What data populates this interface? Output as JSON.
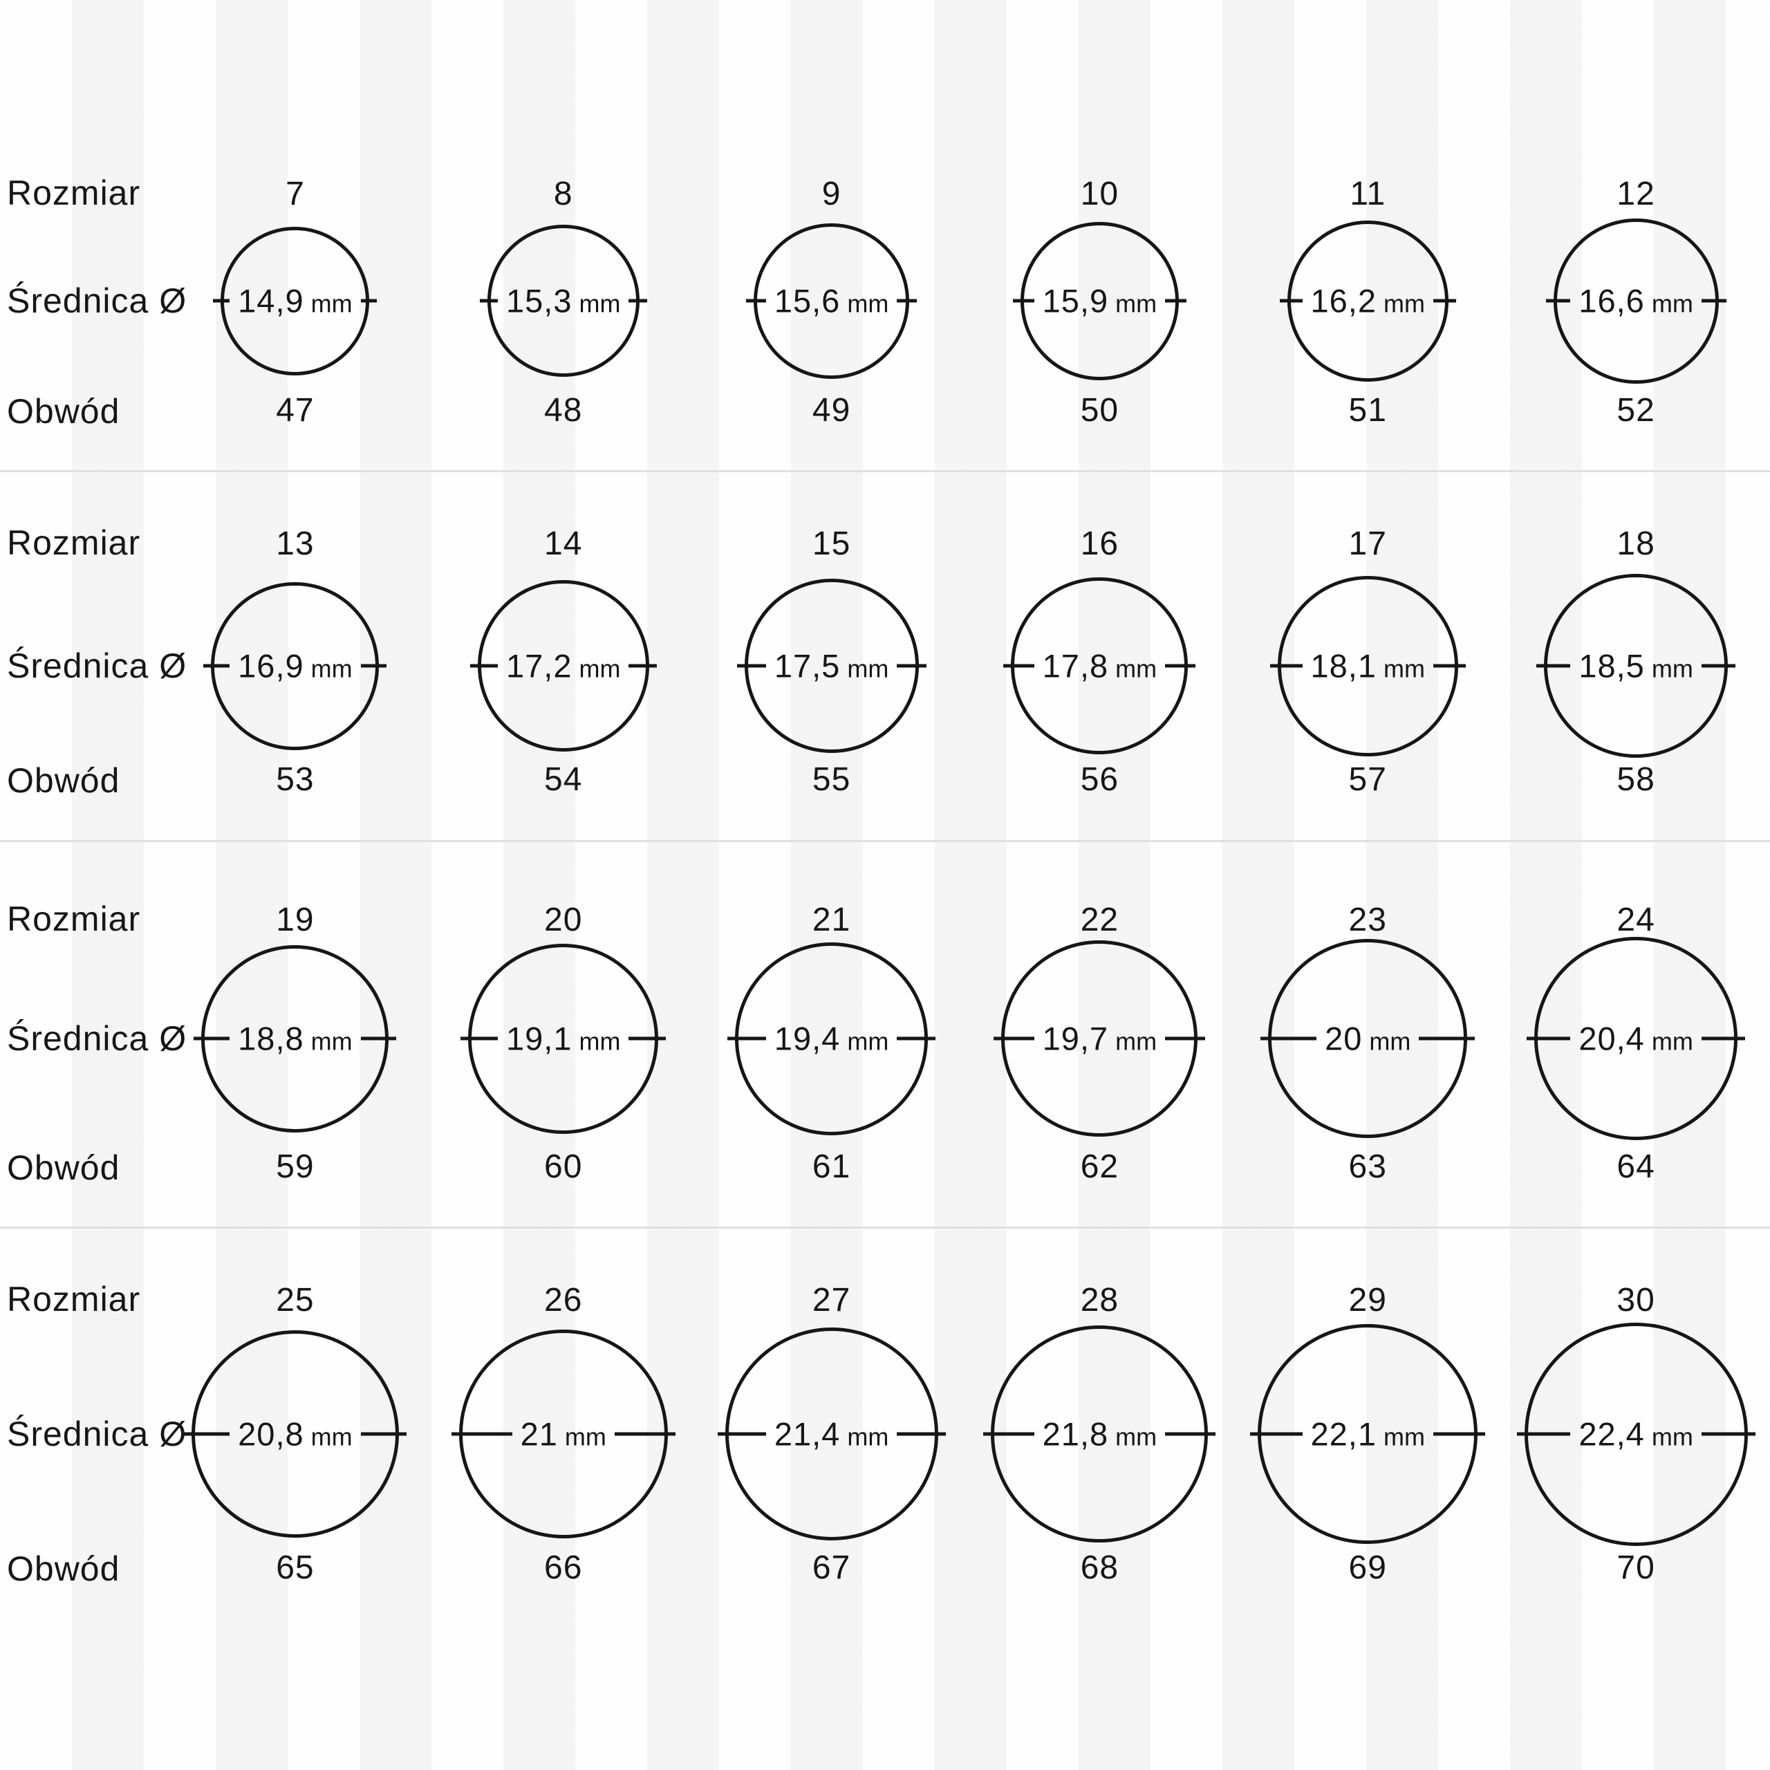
{
  "labels": {
    "size": "Rozmiar",
    "diameter": "Średnica Ø",
    "circumference": "Obwód"
  },
  "unit": "mm",
  "rows": [
    {
      "items": [
        {
          "size": "7",
          "diameter_label": "14,9",
          "diameter_mm": 14.9,
          "circumference": "47"
        },
        {
          "size": "8",
          "diameter_label": "15,3",
          "diameter_mm": 15.3,
          "circumference": "48"
        },
        {
          "size": "9",
          "diameter_label": "15,6",
          "diameter_mm": 15.6,
          "circumference": "49"
        },
        {
          "size": "10",
          "diameter_label": "15,9",
          "diameter_mm": 15.9,
          "circumference": "50"
        },
        {
          "size": "11",
          "diameter_label": "16,2",
          "diameter_mm": 16.2,
          "circumference": "51"
        },
        {
          "size": "12",
          "diameter_label": "16,6",
          "diameter_mm": 16.6,
          "circumference": "52"
        }
      ]
    },
    {
      "items": [
        {
          "size": "13",
          "diameter_label": "16,9",
          "diameter_mm": 16.9,
          "circumference": "53"
        },
        {
          "size": "14",
          "diameter_label": "17,2",
          "diameter_mm": 17.2,
          "circumference": "54"
        },
        {
          "size": "15",
          "diameter_label": "17,5",
          "diameter_mm": 17.5,
          "circumference": "55"
        },
        {
          "size": "16",
          "diameter_label": "17,8",
          "diameter_mm": 17.8,
          "circumference": "56"
        },
        {
          "size": "17",
          "diameter_label": "18,1",
          "diameter_mm": 18.1,
          "circumference": "57"
        },
        {
          "size": "18",
          "diameter_label": "18,5",
          "diameter_mm": 18.5,
          "circumference": "58"
        }
      ]
    },
    {
      "items": [
        {
          "size": "19",
          "diameter_label": "18,8",
          "diameter_mm": 18.8,
          "circumference": "59"
        },
        {
          "size": "20",
          "diameter_label": "19,1",
          "diameter_mm": 19.1,
          "circumference": "60"
        },
        {
          "size": "21",
          "diameter_label": "19,4",
          "diameter_mm": 19.4,
          "circumference": "61"
        },
        {
          "size": "22",
          "diameter_label": "19,7",
          "diameter_mm": 19.7,
          "circumference": "62"
        },
        {
          "size": "23",
          "diameter_label": "20",
          "diameter_mm": 20.0,
          "circumference": "63"
        },
        {
          "size": "24",
          "diameter_label": "20,4",
          "diameter_mm": 20.4,
          "circumference": "64"
        }
      ]
    },
    {
      "items": [
        {
          "size": "25",
          "diameter_label": "20,8",
          "diameter_mm": 20.8,
          "circumference": "65"
        },
        {
          "size": "26",
          "diameter_label": "21",
          "diameter_mm": 21.0,
          "circumference": "66"
        },
        {
          "size": "27",
          "diameter_label": "21,4",
          "diameter_mm": 21.4,
          "circumference": "67"
        },
        {
          "size": "28",
          "diameter_label": "21,8",
          "diameter_mm": 21.8,
          "circumference": "68"
        },
        {
          "size": "29",
          "diameter_label": "22,1",
          "diameter_mm": 22.1,
          "circumference": "69"
        },
        {
          "size": "30",
          "diameter_label": "22,4",
          "diameter_mm": 22.4,
          "circumference": "70"
        }
      ]
    }
  ]
}
